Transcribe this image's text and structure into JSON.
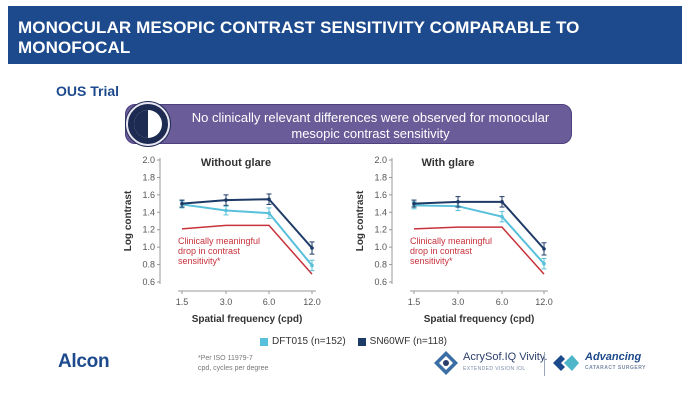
{
  "header": {
    "title": "MONOCULAR MESOPIC CONTRAST SENSITIVITY COMPARABLE TO MONOFOCAL"
  },
  "subtitle": "OUS Trial",
  "banner": {
    "text": "No clinically relevant differences were observed for monocular mesopic contrast sensitivity"
  },
  "colors": {
    "header_bg": "#1d4a8c",
    "dft015": "#58c0da",
    "sn60wf": "#1e3a66",
    "threshold": "#c8323b",
    "banner_bg": "#6a5c98"
  },
  "legend": [
    {
      "name": "DFT015 (n=152)",
      "color": "#58c0da"
    },
    {
      "name": "SN60WF (n=118)",
      "color": "#1e3a66"
    }
  ],
  "chart_data": [
    {
      "type": "line",
      "title": "Without glare",
      "xlabel": "Spatial frequency (cpd)",
      "ylabel": "Log contrast",
      "categories": [
        "1.5",
        "3.0",
        "6.0",
        "12.0"
      ],
      "ylim": [
        0.6,
        2.0
      ],
      "yticks": [
        "0.6",
        "0.8",
        "1.0",
        "1.2",
        "1.4",
        "1.6",
        "1.8",
        "2.0"
      ],
      "series": [
        {
          "name": "DFT015 (n=152)",
          "values": [
            1.49,
            1.42,
            1.39,
            0.79
          ],
          "error": [
            0.04,
            0.05,
            0.06,
            0.06
          ]
        },
        {
          "name": "SN60WF (n=118)",
          "values": [
            1.5,
            1.54,
            1.55,
            0.99
          ],
          "error": [
            0.04,
            0.06,
            0.06,
            0.07
          ]
        }
      ],
      "threshold": {
        "label": "Clinically meaningful drop in contrast sensitivity*",
        "values": [
          1.21,
          1.25,
          1.25,
          0.69
        ]
      }
    },
    {
      "type": "line",
      "title": "With glare",
      "xlabel": "Spatial frequency (cpd)",
      "ylabel": "Log contrast",
      "categories": [
        "1.5",
        "3.0",
        "6.0",
        "12.0"
      ],
      "ylim": [
        0.6,
        2.0
      ],
      "yticks": [
        "0.6",
        "0.8",
        "1.0",
        "1.2",
        "1.4",
        "1.6",
        "1.8",
        "2.0"
      ],
      "series": [
        {
          "name": "DFT015 (n=152)",
          "values": [
            1.48,
            1.47,
            1.35,
            0.81
          ],
          "error": [
            0.04,
            0.05,
            0.06,
            0.06
          ]
        },
        {
          "name": "SN60WF (n=118)",
          "values": [
            1.5,
            1.52,
            1.52,
            0.98
          ],
          "error": [
            0.04,
            0.06,
            0.06,
            0.07
          ]
        }
      ],
      "threshold": {
        "label": "Clinically meaningful drop in contrast sensitivity*",
        "values": [
          1.21,
          1.23,
          1.23,
          0.69
        ]
      }
    }
  ],
  "logo": {
    "alcon": "Alcon"
  },
  "footnotes": [
    "*Per ISO 11979-7",
    "cpd, cycles per degree"
  ],
  "brands": {
    "acrysof_name": "AcrySof.IQ Vivity.",
    "acrysof_sub": "EXTENDED VISION IOL",
    "advancing_title": "Advancing",
    "advancing_sub": "CATARACT SURGERY"
  }
}
